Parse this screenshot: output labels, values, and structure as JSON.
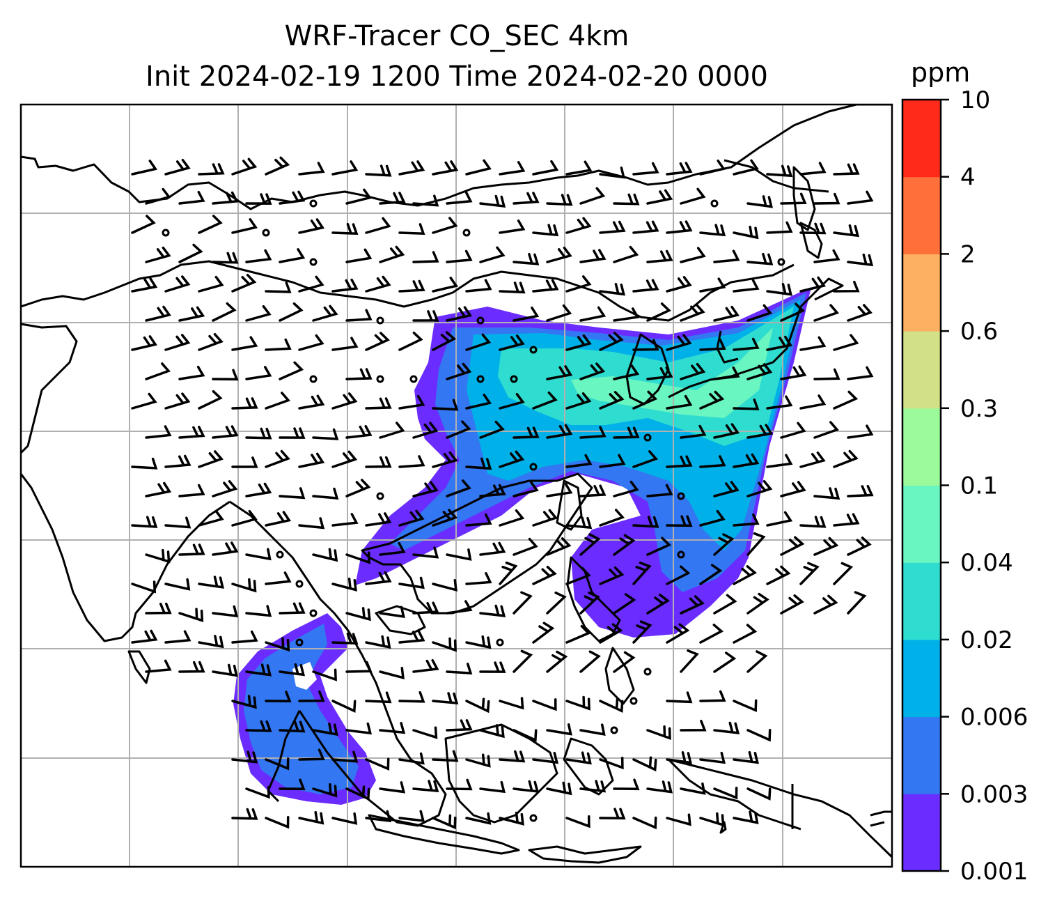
{
  "title": {
    "line1": "WRF-Tracer CO_SEC 4km",
    "line2": "Init 2024-02-19 1200 Time 2024-02-20 0000"
  },
  "colorbar": {
    "unit": "ppm",
    "levels": [
      "0.001",
      "0.003",
      "0.006",
      "0.02",
      "0.04",
      "0.1",
      "0.3",
      "0.6",
      "2",
      "4",
      "10"
    ],
    "colors": [
      "#6a2cff",
      "#3377f2",
      "#00b0e8",
      "#2fdcd0",
      "#6af6c0",
      "#9cfa9a",
      "#d2e088",
      "#fdb061",
      "#ff6f3a",
      "#ff2a1a"
    ]
  },
  "map": {
    "projection": "lat-lon grid",
    "gridlines": true,
    "wind_barbs": true,
    "coastlines": true
  }
}
